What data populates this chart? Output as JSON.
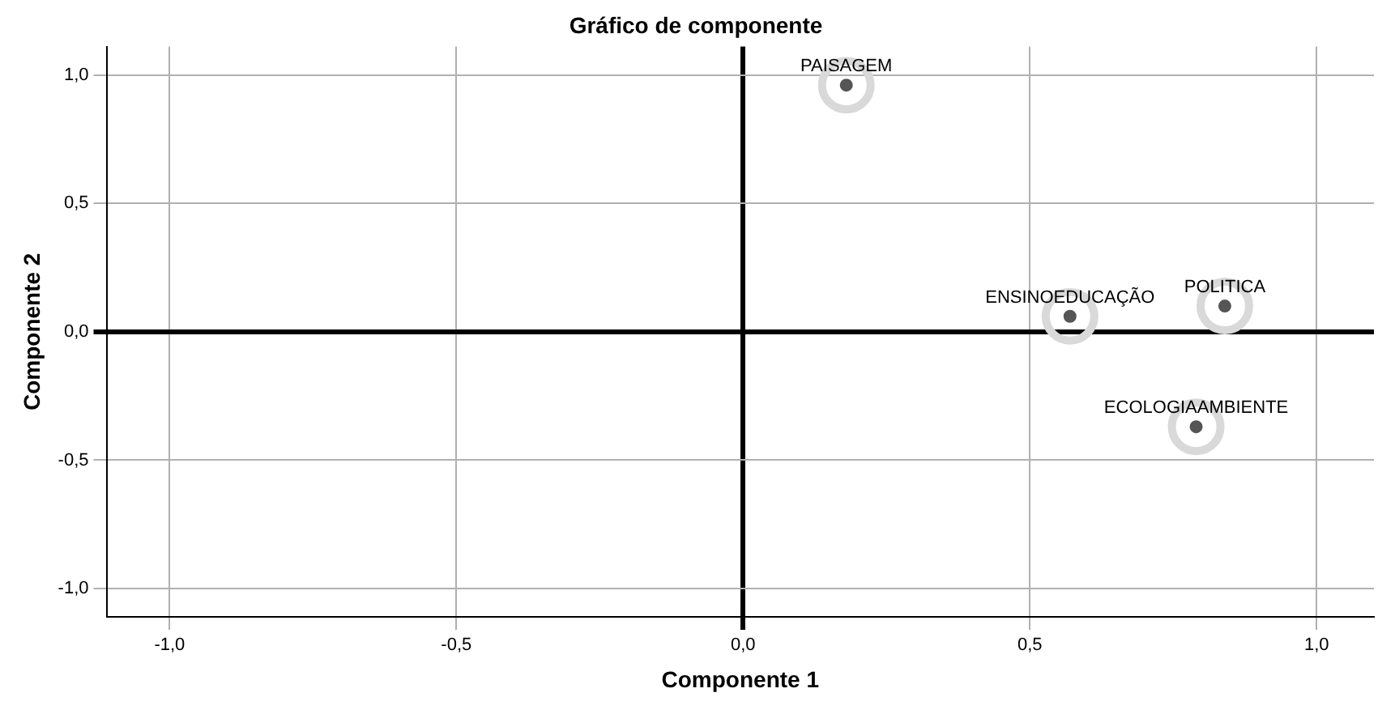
{
  "chart_data": {
    "type": "scatter",
    "title": "Gráfico de componente",
    "xlabel": "Componente 1",
    "ylabel": "Componente 2",
    "x": [
      0.18,
      0.57,
      0.84,
      0.79
    ],
    "series": [
      {
        "color": "#555555",
        "values": [
          0.96,
          0.06,
          0.1,
          -0.37
        ]
      }
    ],
    "marker": "circle",
    "grid": true,
    "legend": false,
    "xlim": [
      -1.11,
      1.1
    ],
    "ylim": [
      -1.11,
      1.11
    ],
    "xticks": [
      {
        "value": -1,
        "label": "-1,0"
      },
      {
        "value": -0.5,
        "label": "-0,5"
      },
      {
        "value": 0,
        "label": "0,0"
      },
      {
        "value": 0.5,
        "label": "0,5"
      },
      {
        "value": 1,
        "label": "1,0"
      }
    ],
    "yticks": [
      {
        "value": -1,
        "label": "-1,0"
      },
      {
        "value": -0.5,
        "label": "-0,5"
      },
      {
        "value": 0,
        "label": "0,0"
      },
      {
        "value": 0.5,
        "label": "0,5"
      },
      {
        "value": 1,
        "label": "1,0"
      }
    ],
    "annotations": [
      {
        "text": "PAISAGEM",
        "x": 0.18,
        "y": 0.96
      },
      {
        "text": "ENSINOEDUCAÇÃO",
        "x": 0.57,
        "y": 0.06
      },
      {
        "text": "POLITICA",
        "x": 0.84,
        "y": 0.1
      },
      {
        "text": "ECOLOGIAAMBIENTE",
        "x": 0.79,
        "y": -0.37
      }
    ]
  }
}
